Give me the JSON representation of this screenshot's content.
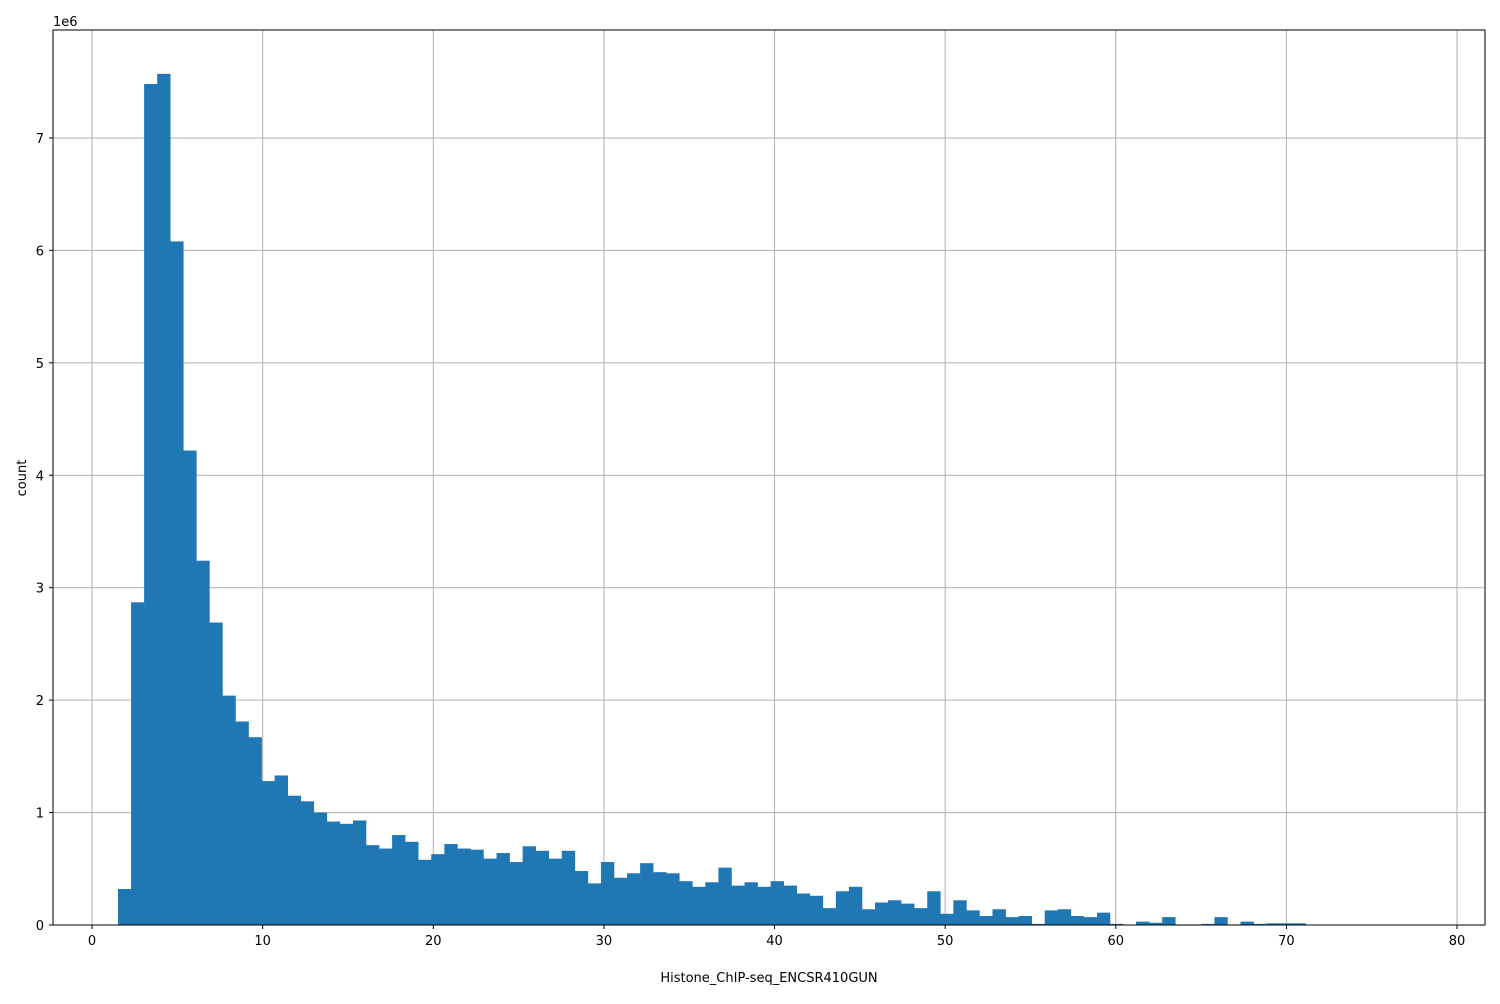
{
  "chart_data": {
    "type": "bar",
    "subtype": "histogram",
    "title": "",
    "xlabel": "Histone_ChIP-seq_ENCSR410GUN",
    "ylabel": "count",
    "y_offset_label": "1e6",
    "y_scale": 1000000,
    "xlim": [
      -2.29,
      81.64
    ],
    "ylim": [
      0,
      7.96
    ],
    "grid": true,
    "bar_color": "#1f77b4",
    "bin_start": 1.52,
    "bin_width": 0.765,
    "xticks": [
      "0",
      "10",
      "20",
      "30",
      "40",
      "50",
      "60",
      "70",
      "80"
    ],
    "yticks": [
      "0",
      "1",
      "2",
      "3",
      "4",
      "5",
      "6",
      "7"
    ],
    "values_millions": [
      0.32,
      2.87,
      7.48,
      7.57,
      6.08,
      4.22,
      3.24,
      2.69,
      2.04,
      1.81,
      1.67,
      1.28,
      1.33,
      1.15,
      1.1,
      1.0,
      0.92,
      0.9,
      0.93,
      0.71,
      0.68,
      0.8,
      0.74,
      0.58,
      0.63,
      0.72,
      0.68,
      0.67,
      0.59,
      0.64,
      0.56,
      0.7,
      0.66,
      0.59,
      0.66,
      0.48,
      0.37,
      0.56,
      0.42,
      0.46,
      0.55,
      0.47,
      0.46,
      0.39,
      0.34,
      0.38,
      0.51,
      0.35,
      0.38,
      0.34,
      0.39,
      0.35,
      0.28,
      0.26,
      0.15,
      0.3,
      0.34,
      0.14,
      0.2,
      0.22,
      0.19,
      0.15,
      0.3,
      0.1,
      0.22,
      0.13,
      0.08,
      0.14,
      0.07,
      0.08,
      0.01,
      0.13,
      0.14,
      0.08,
      0.07,
      0.11,
      0.01,
      0.0,
      0.03,
      0.02,
      0.07,
      0.005,
      0.005,
      0.01,
      0.07,
      0.005,
      0.03,
      0.01,
      0.015,
      0.015,
      0.015
    ]
  }
}
